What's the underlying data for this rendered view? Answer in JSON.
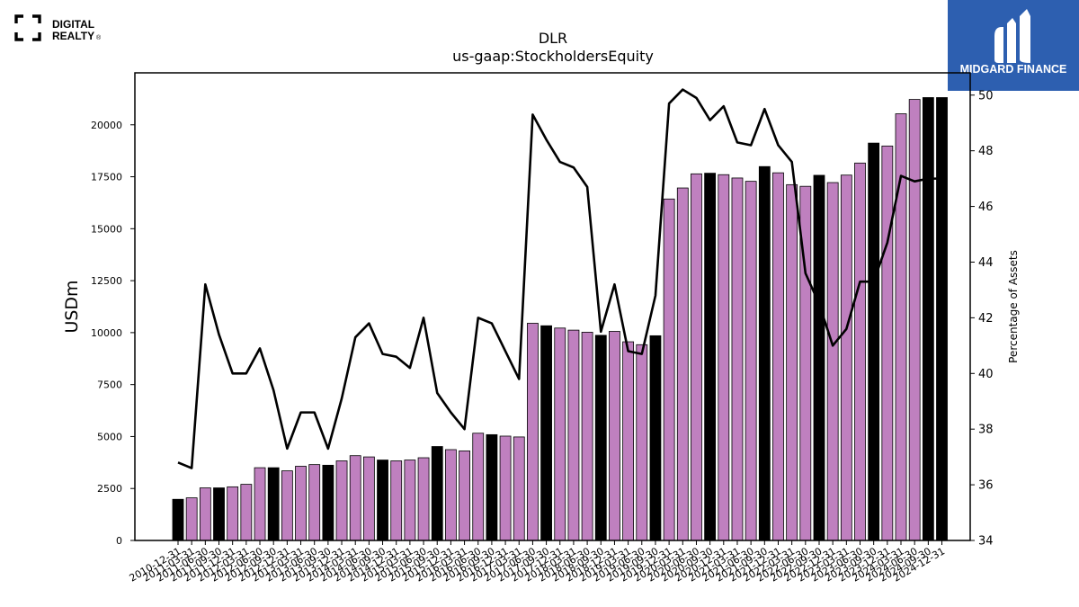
{
  "brand_left": {
    "line1": "DIGITAL",
    "line2": "REALTY",
    "mark": "®"
  },
  "brand_right": {
    "name": "MIDGARD FINANCE"
  },
  "colors": {
    "highlight_bar": "#000000",
    "regular_bar": "#bf80bf",
    "line": "#000000",
    "brand_right_bg": "#2d5fb0"
  },
  "chart_data": {
    "type": "bar+line",
    "title": "DLR",
    "subtitle": "us-gaap:StockholdersEquity",
    "ylabel": "USDm",
    "y2label": "Percentage of Assets",
    "ylim": [
      0,
      22500
    ],
    "y2lim": [
      34,
      50.8
    ],
    "yticks": [
      0,
      2500,
      5000,
      7500,
      10000,
      12500,
      15000,
      17500,
      20000
    ],
    "y2ticks": [
      34,
      36,
      38,
      40,
      42,
      44,
      46,
      48,
      50
    ],
    "categories": [
      "2010-12-31",
      "2011-03-31",
      "2011-06-30",
      "2011-09-30",
      "2011-12-31",
      "2012-03-31",
      "2012-06-30",
      "2012-09-30",
      "2012-12-31",
      "2013-03-31",
      "2013-06-30",
      "2013-09-30",
      "2013-12-31",
      "2014-03-31",
      "2014-06-30",
      "2014-09-30",
      "2014-12-31",
      "2015-03-31",
      "2015-06-30",
      "2015-09-30",
      "2015-12-31",
      "2016-03-31",
      "2016-06-30",
      "2016-09-30",
      "2016-12-31",
      "2017-03-31",
      "2017-06-30",
      "2017-09-30",
      "2017-12-31",
      "2018-03-31",
      "2018-06-30",
      "2018-09-30",
      "2018-12-31",
      "2019-03-31",
      "2019-06-30",
      "2019-09-30",
      "2019-12-31",
      "2020-03-31",
      "2020-06-30",
      "2020-09-30",
      "2020-12-31",
      "2021-03-31",
      "2021-06-30",
      "2021-09-30",
      "2021-12-31",
      "2022-03-31",
      "2022-06-30",
      "2022-09-30",
      "2022-12-31",
      "2023-03-31",
      "2023-06-30",
      "2023-09-30",
      "2023-12-31",
      "2024-03-31",
      "2024-06-30",
      "2024-09-30",
      "2024-12-31"
    ],
    "series": [
      {
        "type": "bar",
        "values": [
          1980,
          2050,
          2530,
          2530,
          2580,
          2700,
          3500,
          3500,
          3350,
          3570,
          3650,
          3620,
          3830,
          4080,
          4020,
          3870,
          3830,
          3870,
          3980,
          4520,
          4370,
          4310,
          5160,
          5090,
          5020,
          4980,
          10450,
          10330,
          10220,
          10120,
          10020,
          9870,
          10060,
          9560,
          9420,
          9850,
          16430,
          16960,
          17640,
          17670,
          17600,
          17440,
          17280,
          17990,
          17690,
          17120,
          17040,
          17570,
          17220,
          17580,
          18160,
          19120,
          18980,
          20530,
          21220,
          21310,
          21310
        ],
        "highlight": [
          true,
          false,
          false,
          true,
          false,
          false,
          false,
          true,
          false,
          false,
          false,
          true,
          false,
          false,
          false,
          true,
          false,
          false,
          false,
          true,
          false,
          false,
          false,
          true,
          false,
          false,
          false,
          true,
          false,
          false,
          false,
          true,
          false,
          false,
          false,
          true,
          false,
          false,
          false,
          true,
          false,
          false,
          false,
          true,
          false,
          false,
          false,
          true,
          false,
          false,
          false,
          true,
          false,
          false,
          false,
          true,
          true
        ]
      },
      {
        "type": "line",
        "axis": "right",
        "values": [
          36.8,
          36.6,
          43.2,
          41.4,
          40.0,
          40.0,
          40.9,
          39.4,
          37.3,
          38.6,
          38.6,
          37.3,
          39.1,
          41.3,
          41.8,
          40.7,
          40.6,
          40.2,
          42.0,
          39.3,
          38.6,
          38.0,
          42.0,
          41.8,
          40.8,
          39.8,
          49.3,
          48.4,
          47.6,
          47.4,
          46.7,
          41.5,
          43.2,
          40.8,
          40.7,
          42.8,
          49.7,
          50.2,
          49.9,
          49.1,
          49.6,
          48.3,
          48.2,
          49.5,
          48.2,
          47.6,
          43.6,
          42.5,
          41.0,
          41.6,
          43.3,
          43.3,
          44.7,
          47.1,
          46.9,
          47.0,
          47.0
        ]
      }
    ]
  }
}
